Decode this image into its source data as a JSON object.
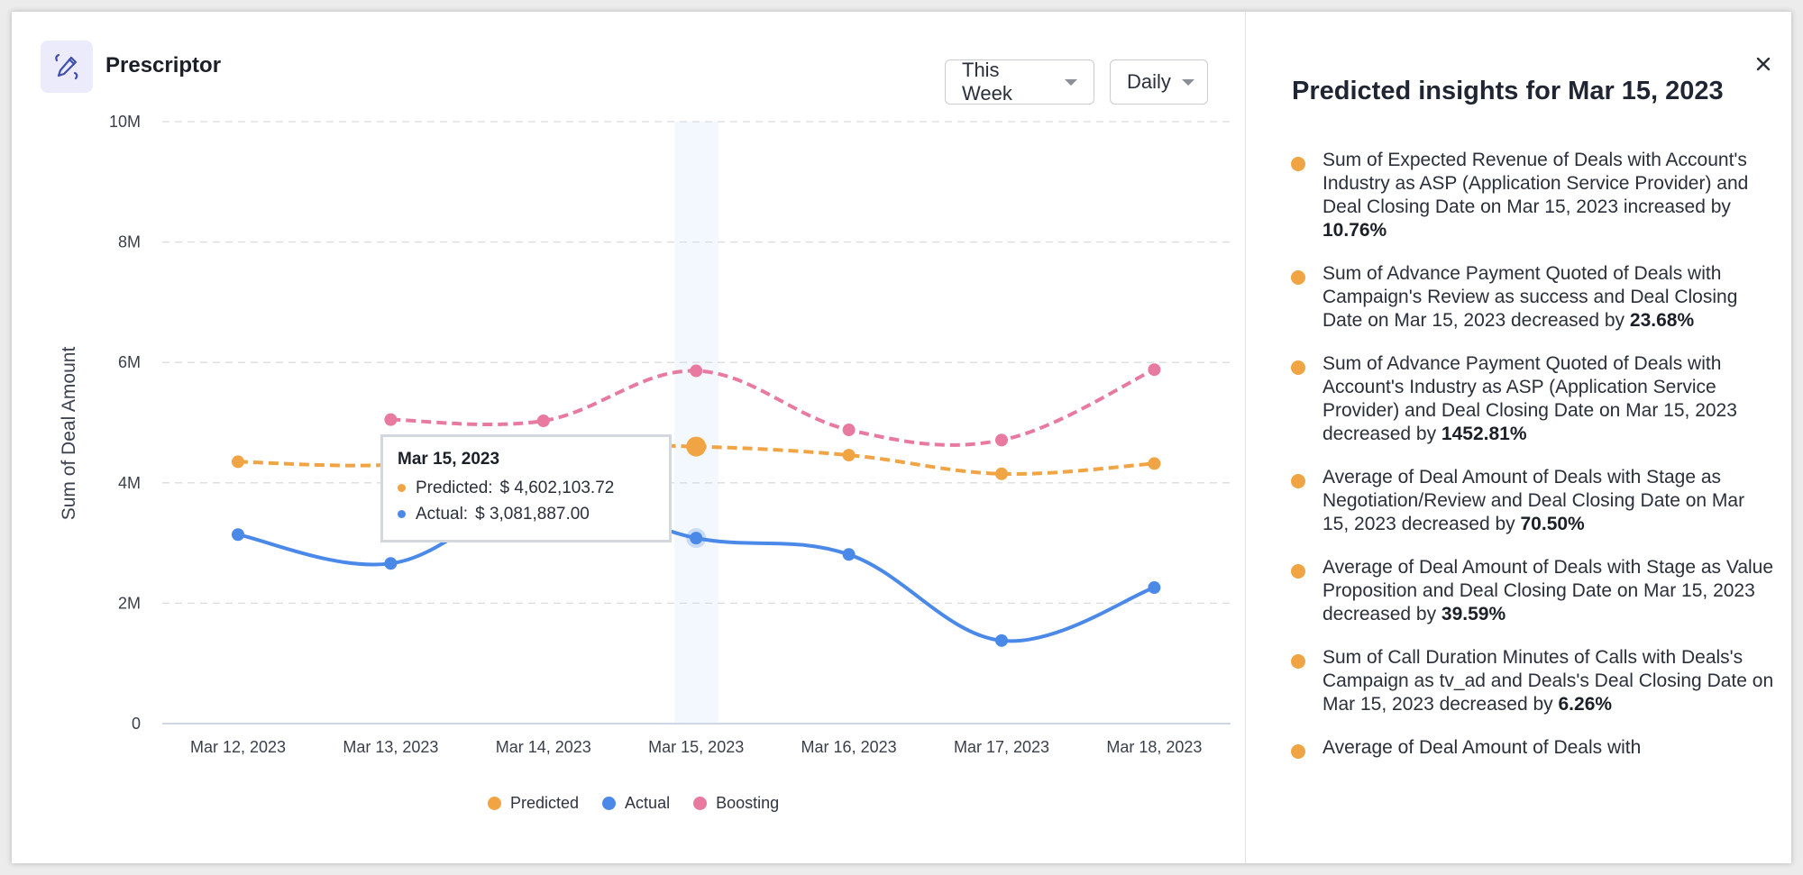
{
  "app": {
    "title": "Prescriptor",
    "logo_icon": "pencil-code-icon"
  },
  "filters": {
    "period": {
      "selected": "This Week"
    },
    "granularity": {
      "selected": "Daily"
    }
  },
  "tooltip": {
    "date": "Mar 15, 2023",
    "rows": [
      {
        "label": "Predicted:",
        "value": "$ 4,602,103.72",
        "color": "#f0a443"
      },
      {
        "label": "Actual:",
        "value": "$ 3,081,887.00",
        "color": "#4a89e8"
      }
    ]
  },
  "colors": {
    "predicted": "#f0a443",
    "actual": "#4a89e8",
    "boosting": "#e87aa0",
    "highlight": "#f2f8fe",
    "grid": "#d9dce1",
    "axis": "#cfd6e6"
  },
  "chart_data": {
    "type": "line",
    "title": "",
    "xlabel": "",
    "ylabel": "Sum of Deal Amount",
    "categories": [
      "Mar 12, 2023",
      "Mar 13, 2023",
      "Mar 14, 2023",
      "Mar 15, 2023",
      "Mar 16, 2023",
      "Mar 17, 2023",
      "Mar 18, 2023"
    ],
    "ylim": [
      0,
      10000000
    ],
    "yticks": [
      0,
      2000000,
      4000000,
      6000000,
      8000000,
      10000000
    ],
    "ytick_labels": [
      "0",
      "2M",
      "4M",
      "6M",
      "8M",
      "10M"
    ],
    "grid": true,
    "highlighted_category": "Mar 15, 2023",
    "legend_position": "bottom",
    "series": [
      {
        "name": "Predicted",
        "style": "dashed",
        "values": [
          4350000,
          4300000,
          4600000,
          4602103.72,
          4460000,
          4150000,
          4320000
        ]
      },
      {
        "name": "Actual",
        "style": "solid",
        "values": [
          3140000,
          2660000,
          3800000,
          3081887.0,
          2810000,
          1380000,
          2260000
        ]
      },
      {
        "name": "Boosting",
        "style": "dashed",
        "values": [
          null,
          5050000,
          5030000,
          5860000,
          4880000,
          4710000,
          5880000
        ]
      }
    ]
  },
  "legend": [
    {
      "label": "Predicted",
      "color": "#f0a443"
    },
    {
      "label": "Actual",
      "color": "#4a89e8"
    },
    {
      "label": "Boosting",
      "color": "#e87aa0"
    }
  ],
  "panel": {
    "title": "Predicted insights for Mar 15, 2023",
    "close_icon": "close-icon",
    "insights": [
      {
        "text": "Sum of Expected Revenue of Deals with Account's Industry as ASP (Application Service Provider) and Deal Closing Date on Mar 15, 2023 increased by ",
        "value": "10.76%"
      },
      {
        "text": "Sum of Advance Payment Quoted of Deals with Campaign's Review as success and Deal Closing Date on Mar 15, 2023 decreased by ",
        "value": "23.68%"
      },
      {
        "text": "Sum of Advance Payment Quoted of Deals with Account's Industry as ASP (Application Service Provider) and Deal Closing Date on Mar 15, 2023 decreased by ",
        "value": "1452.81%"
      },
      {
        "text": "Average of Deal Amount of Deals with Stage as Negotiation/Review and Deal Closing Date on Mar 15, 2023 decreased by ",
        "value": "70.50%"
      },
      {
        "text": "Average of Deal Amount of Deals with Stage as Value Proposition and Deal Closing Date on Mar 15, 2023 decreased by ",
        "value": "39.59%"
      },
      {
        "text": "Sum of Call Duration Minutes of Calls with Deals's Campaign as tv_ad and Deals's Deal Closing Date on Mar 15, 2023 decreased by ",
        "value": "6.26%"
      },
      {
        "text": "Average of Deal Amount of Deals with",
        "value": ""
      }
    ]
  }
}
